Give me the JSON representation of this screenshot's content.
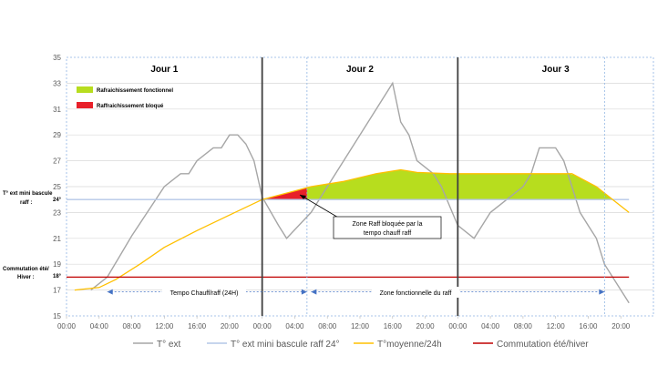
{
  "chart_data": {
    "type": "line",
    "x_tick_labels": [
      "00:00",
      "04:00",
      "08:00",
      "12:00",
      "16:00",
      "20:00",
      "00:00",
      "04:00",
      "08:00",
      "12:00",
      "16:00",
      "20:00",
      "00:00",
      "04:00",
      "08:00",
      "12:00",
      "16:00",
      "20:00"
    ],
    "xlim_hours": [
      0,
      72
    ],
    "ylim": [
      15,
      35
    ],
    "y_ticks": [
      15,
      17,
      19,
      21,
      23,
      25,
      27,
      29,
      31,
      33,
      35
    ],
    "day_labels": [
      "Jour 1",
      "Jour 2",
      "Jour 3"
    ],
    "day_separators_hours": [
      24,
      48
    ],
    "side_labels": {
      "threshold_label_line1": "T° ext mini bascule",
      "threshold_label_line2": "raff :",
      "threshold_value_label": "24°",
      "switch_label_line1": "Commutation été/",
      "switch_label_line2": "Hiver :",
      "switch_value_label": "18°"
    },
    "area_legend": [
      {
        "label": "Rafraichissement fonctionnel",
        "color": "#b7dd1e"
      },
      {
        "label": "Raffraichissement bloqué",
        "color": "#e8202a"
      }
    ],
    "annotations": {
      "blocked_zone_line1": "Zone Raff bloquée par la",
      "blocked_zone_line2": "tempo chauff raff",
      "tempo_label": "Tempo Chauff/raff (24H)",
      "functional_zone_label": "Zone fonctionnelle du raff"
    },
    "series": [
      {
        "name": "T° ext",
        "color": "#a6a6a6",
        "x": [
          3,
          5,
          8,
          12,
          14,
          15,
          16,
          18,
          19,
          20,
          21,
          22,
          23,
          24,
          26,
          27,
          30,
          34,
          40,
          41,
          42,
          43,
          45,
          46,
          48,
          50,
          52,
          56,
          57,
          58,
          60,
          61,
          62,
          63,
          64,
          65,
          66,
          69
        ],
        "values": [
          17,
          18,
          21.2,
          25,
          26,
          26,
          27,
          28,
          28,
          29,
          29,
          28.3,
          27,
          24.2,
          22,
          21,
          23,
          27,
          33,
          30,
          29,
          27,
          26,
          25,
          22,
          21,
          23,
          25,
          26,
          28,
          28,
          27,
          25,
          23,
          22,
          21,
          19,
          16
        ]
      },
      {
        "name": "T° ext mini bascule raff 24°",
        "color": "#b4c7e7",
        "x": [
          0,
          69
        ],
        "values": [
          24,
          24
        ]
      },
      {
        "name": "T°moyenne/24h",
        "color": "#ffc000",
        "x": [
          1,
          4,
          6,
          9,
          12,
          16,
          20,
          24,
          27,
          30,
          34,
          38,
          41,
          43,
          47,
          50,
          54,
          58,
          62,
          65,
          67,
          69
        ],
        "values": [
          17,
          17.2,
          17.8,
          19,
          20.3,
          21.6,
          22.8,
          24,
          24.5,
          25,
          25.4,
          26,
          26.3,
          26.1,
          26,
          26,
          26,
          26,
          26,
          25,
          24,
          23
        ]
      },
      {
        "name": "Commutation été/hiver",
        "color": "#c00000",
        "x": [
          0,
          69
        ],
        "values": [
          18,
          18
        ]
      }
    ],
    "shaded_regions": [
      {
        "label": "Raffraichissement bloqué",
        "from_hour": 24,
        "to_hour": 29.5
      },
      {
        "label": "Rafraichissement fonctionnel",
        "from_hour": 29.5,
        "to_hour": 67
      }
    ],
    "range_markers_hours": [
      {
        "label": "Tempo Chauff/raff (24H)",
        "from": 5,
        "to": 29.5
      },
      {
        "label": "Zone fonctionnelle du raff",
        "from": 30,
        "to": 66
      }
    ]
  }
}
